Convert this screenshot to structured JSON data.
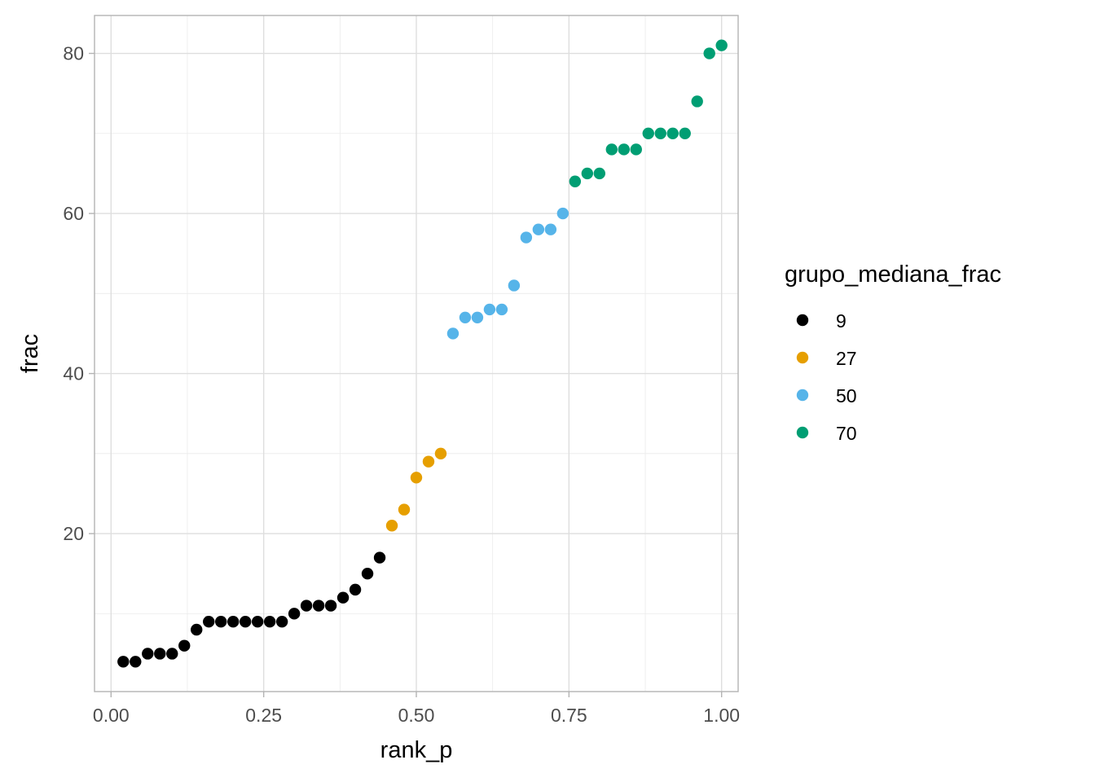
{
  "chart_data": {
    "type": "scatter",
    "xlabel": "rank_p",
    "ylabel": "frac",
    "xlim": [
      -0.0271,
      1.0271
    ],
    "ylim": [
      0.265,
      84.735
    ],
    "xticks": [
      {
        "value": 0.0,
        "label": "0.00"
      },
      {
        "value": 0.25,
        "label": "0.25"
      },
      {
        "value": 0.5,
        "label": "0.50"
      },
      {
        "value": 0.75,
        "label": "0.75"
      },
      {
        "value": 1.0,
        "label": "1.00"
      }
    ],
    "yticks": [
      {
        "value": 20,
        "label": "20"
      },
      {
        "value": 40,
        "label": "40"
      },
      {
        "value": 60,
        "label": "60"
      },
      {
        "value": 80,
        "label": "80"
      }
    ],
    "x_minor": [
      0.125,
      0.375,
      0.625,
      0.875
    ],
    "y_minor": [
      10,
      30,
      50,
      70
    ],
    "grid": true,
    "legend": {
      "title": "grupo_mediana_frac",
      "position": "right"
    },
    "series": [
      {
        "name": "9",
        "color": "#000000",
        "points": [
          [
            0.02,
            4
          ],
          [
            0.04,
            4
          ],
          [
            0.06,
            5
          ],
          [
            0.08,
            5
          ],
          [
            0.1,
            5
          ],
          [
            0.12,
            6
          ],
          [
            0.14,
            8
          ],
          [
            0.16,
            9
          ],
          [
            0.18,
            9
          ],
          [
            0.2,
            9
          ],
          [
            0.22,
            9
          ],
          [
            0.24,
            9
          ],
          [
            0.26,
            9
          ],
          [
            0.28,
            9
          ],
          [
            0.3,
            10
          ],
          [
            0.32,
            11
          ],
          [
            0.34,
            11
          ],
          [
            0.36,
            11
          ],
          [
            0.38,
            12
          ],
          [
            0.4,
            13
          ],
          [
            0.42,
            15
          ],
          [
            0.44,
            17
          ]
        ]
      },
      {
        "name": "27",
        "color": "#E69F00",
        "points": [
          [
            0.46,
            21
          ],
          [
            0.48,
            23
          ],
          [
            0.5,
            27
          ],
          [
            0.52,
            29
          ],
          [
            0.54,
            30
          ]
        ]
      },
      {
        "name": "50",
        "color": "#56B4E9",
        "points": [
          [
            0.56,
            45
          ],
          [
            0.58,
            47
          ],
          [
            0.6,
            47
          ],
          [
            0.62,
            48
          ],
          [
            0.64,
            48
          ],
          [
            0.66,
            51
          ],
          [
            0.68,
            57
          ],
          [
            0.7,
            58
          ],
          [
            0.72,
            58
          ],
          [
            0.74,
            60
          ]
        ]
      },
      {
        "name": "70",
        "color": "#009E73",
        "points": [
          [
            0.76,
            64
          ],
          [
            0.78,
            65
          ],
          [
            0.8,
            65
          ],
          [
            0.82,
            68
          ],
          [
            0.84,
            68
          ],
          [
            0.86,
            68
          ],
          [
            0.88,
            70
          ],
          [
            0.9,
            70
          ],
          [
            0.92,
            70
          ],
          [
            0.94,
            70
          ],
          [
            0.96,
            74
          ],
          [
            0.98,
            80
          ],
          [
            1.0,
            81
          ]
        ]
      }
    ]
  }
}
